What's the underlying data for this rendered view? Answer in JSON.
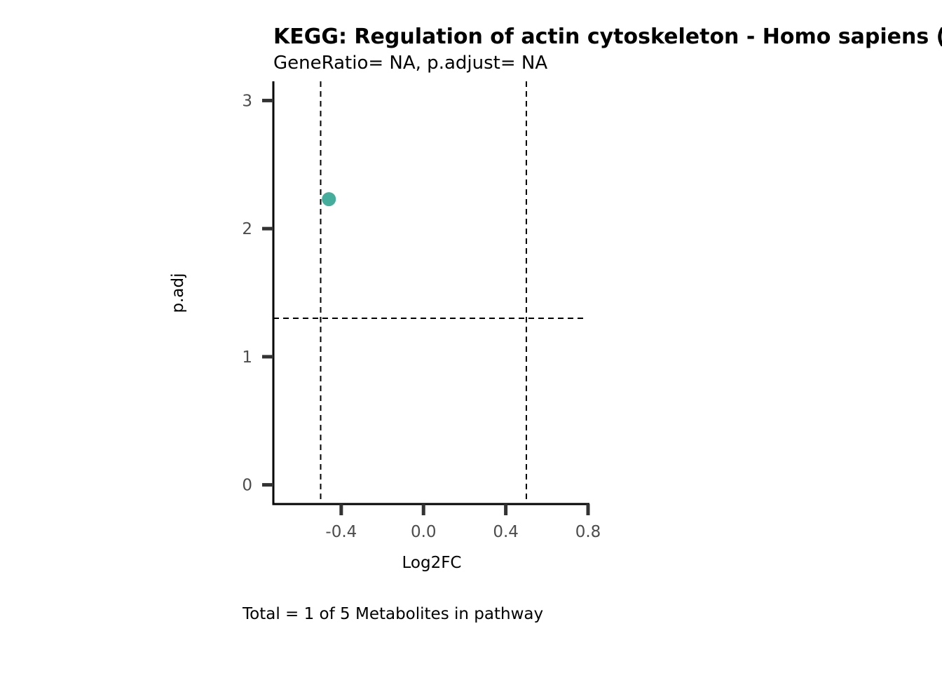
{
  "chart_data": {
    "type": "scatter",
    "title": "KEGG: Regulation of actin cytoskeleton - Homo sapiens (human)",
    "subtitle": "GeneRatio= NA, p.adjust= NA",
    "xlabel": "Log2FC",
    "ylabel": "p.adj",
    "caption": "Total = 1 of 5 Metabolites in pathway",
    "xlim": [
      -0.73,
      0.8
    ],
    "ylim": [
      -0.15,
      3.15
    ],
    "x_ticks": [
      -0.4,
      0.0,
      0.4,
      0.8
    ],
    "x_tick_labels": [
      "-0.4",
      "0.0",
      "0.4",
      "0.8"
    ],
    "y_ticks": [
      0,
      1,
      2,
      3
    ],
    "y_tick_labels": [
      "0",
      "1",
      "2",
      "3"
    ],
    "vlines": [
      -0.5,
      0.5
    ],
    "hlines": [
      1.3
    ],
    "grid": false,
    "legend": "none",
    "point_color": "#45ad9c",
    "points": [
      {
        "x": -0.46,
        "y": 2.23
      }
    ]
  }
}
